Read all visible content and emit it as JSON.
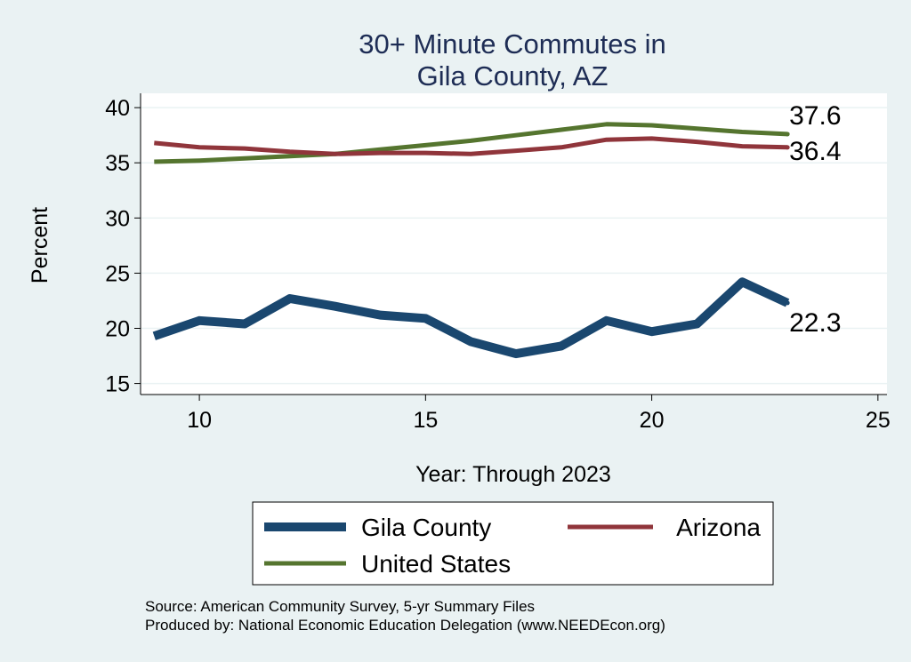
{
  "chart_data": {
    "type": "line",
    "title": [
      "30+ Minute Commutes in",
      "Gila County, AZ"
    ],
    "xlabel": "Year: Through 2023",
    "ylabel": "Percent",
    "xlim": [
      8.7,
      25.2
    ],
    "ylim": [
      14,
      41.3
    ],
    "xticks": [
      10,
      15,
      20,
      25
    ],
    "yticks": [
      15,
      20,
      25,
      30,
      35,
      40
    ],
    "grid": true,
    "legend_position": "bottom",
    "x": [
      9,
      10,
      11,
      12,
      13,
      14,
      15,
      16,
      17,
      18,
      19,
      20,
      21,
      22,
      23
    ],
    "series": [
      {
        "name": "Gila County",
        "color": "#1a476f",
        "values": [
          19.3,
          20.7,
          20.4,
          22.7,
          22.0,
          21.2,
          20.9,
          18.8,
          17.7,
          18.4,
          20.7,
          19.7,
          20.4,
          24.2,
          22.3
        ],
        "end_label": "22.3"
      },
      {
        "name": "Arizona",
        "color": "#90353b",
        "values": [
          36.8,
          36.4,
          36.3,
          36.0,
          35.8,
          35.9,
          35.9,
          35.8,
          36.1,
          36.4,
          37.1,
          37.2,
          36.9,
          36.5,
          36.4
        ],
        "end_label": "36.4"
      },
      {
        "name": "United States",
        "color": "#55752f",
        "values": [
          35.1,
          35.2,
          35.4,
          35.6,
          35.8,
          36.2,
          36.6,
          37.0,
          37.5,
          38.0,
          38.5,
          38.4,
          38.1,
          37.8,
          37.6
        ],
        "end_label": "37.6"
      }
    ],
    "notes": [
      "Source: American Community Survey, 5-yr Summary Files",
      "Produced by: National Economic Education Delegation (www.NEEDEcon.org)"
    ]
  }
}
